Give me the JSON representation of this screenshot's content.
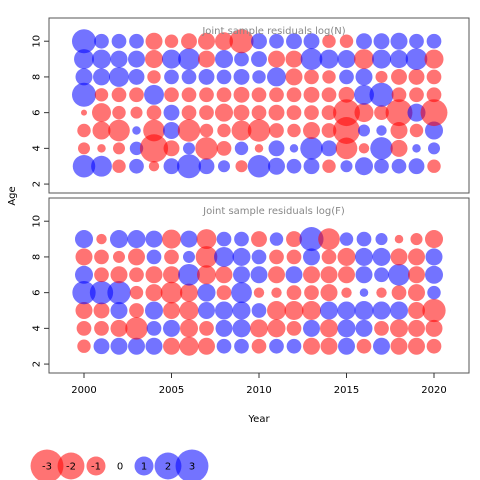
{
  "colors": {
    "negative": "#ff0000",
    "positive": "#0000ff",
    "bubble_opacity": 0.55,
    "frame": "#555555"
  },
  "xlabel": "Year",
  "ylabel": "Age",
  "xticks": [
    2000,
    2005,
    2010,
    2015,
    2020
  ],
  "yticks": [
    2,
    4,
    6,
    8,
    10
  ],
  "legend": {
    "values": [
      -3,
      -2,
      -1,
      0,
      1,
      2,
      3
    ],
    "labels": [
      "-3",
      "-2",
      "-1",
      "0",
      "1",
      "2",
      "3"
    ]
  },
  "chart_data": [
    {
      "type": "scatter",
      "subtype": "bubble-residuals",
      "title": "Joint sample residuals log(N)",
      "xlabel": "Year",
      "ylabel": "Age",
      "xlim": [
        1998,
        2022
      ],
      "ylim": [
        1.5,
        11.3
      ],
      "years": [
        2000,
        2001,
        2002,
        2003,
        2004,
        2005,
        2006,
        2007,
        2008,
        2009,
        2010,
        2011,
        2012,
        2013,
        2014,
        2015,
        2016,
        2017,
        2018,
        2019,
        2020
      ],
      "ages": [
        3,
        4,
        5,
        6,
        7,
        8,
        9,
        10
      ],
      "residuals": [
        [
          1.4,
          1.2,
          -0.5,
          0.6,
          -0.3,
          0.7,
          1.6,
          0.7,
          0.4,
          -0.4,
          1.4,
          0.8,
          0.6,
          0.7,
          -0.5,
          0.4,
          0.9,
          0.6,
          0.6,
          0.7,
          -0.5
        ],
        [
          -0.4,
          -0.2,
          -0.4,
          0.5,
          -2.2,
          -0.7,
          0.4,
          -1.4,
          -0.6,
          0.5,
          -0.2,
          0.7,
          0.2,
          1.4,
          0.7,
          -1.3,
          -0.3,
          1.4,
          -0.8,
          0.2,
          0.4
        ],
        [
          -0.5,
          -0.9,
          -1.3,
          0.2,
          -1.3,
          0.8,
          -1.4,
          -0.5,
          -0.5,
          -1.1,
          -1.4,
          -0.6,
          -0.5,
          -0.8,
          -0.6,
          -2.0,
          0.4,
          0.3,
          -0.8,
          -0.5,
          0.9
        ],
        [
          -0.1,
          -1.0,
          -0.5,
          -0.4,
          -0.6,
          0.7,
          -0.6,
          -0.6,
          -0.9,
          -0.7,
          -0.6,
          -0.7,
          -0.6,
          -0.6,
          -0.6,
          -2.0,
          -1.0,
          -0.6,
          -2.0,
          0.9,
          -2.0
        ],
        [
          1.6,
          -0.5,
          -0.6,
          -0.6,
          1.1,
          -0.6,
          -0.6,
          -0.6,
          -0.6,
          -0.7,
          -0.6,
          -0.6,
          -0.6,
          -0.7,
          -0.6,
          -0.7,
          1.1,
          1.6,
          -0.6,
          -0.6,
          -0.6
        ],
        [
          0.8,
          0.8,
          1.1,
          0.7,
          -0.5,
          0.6,
          0.6,
          0.7,
          0.6,
          0.7,
          0.5,
          1.0,
          -0.8,
          -0.6,
          -0.5,
          0.6,
          0.8,
          -0.4,
          -0.7,
          -0.7,
          -0.6
        ],
        [
          1.1,
          1.0,
          0.8,
          0.8,
          -0.9,
          1.0,
          1.3,
          -0.8,
          0.9,
          0.6,
          0.7,
          -0.8,
          -0.8,
          1.3,
          1.0,
          0.9,
          -1.1,
          1.0,
          0.9,
          1.3,
          -1.0
        ],
        [
          1.6,
          0.6,
          0.6,
          0.6,
          -0.8,
          -0.5,
          -0.7,
          -0.8,
          -0.9,
          -1.6,
          0.7,
          0.6,
          0.7,
          0.7,
          -0.5,
          -0.5,
          0.7,
          0.7,
          0.8,
          0.6,
          0.6
        ]
      ]
    },
    {
      "type": "scatter",
      "subtype": "bubble-residuals",
      "title": "Joint sample residuals log(F)",
      "xlabel": "Year",
      "ylabel": "Age",
      "xlim": [
        1998,
        2022
      ],
      "ylim": [
        1.5,
        11.3
      ],
      "years": [
        2000,
        2001,
        2002,
        2003,
        2004,
        2005,
        2006,
        2007,
        2008,
        2009,
        2010,
        2011,
        2012,
        2013,
        2014,
        2015,
        2016,
        2017,
        2018,
        2019,
        2020
      ],
      "ages": [
        3,
        4,
        5,
        6,
        7,
        8,
        9
      ],
      "residuals": [
        [
          -0.5,
          0.7,
          0.8,
          0.8,
          0.8,
          -0.8,
          -1.0,
          -0.8,
          0.6,
          0.6,
          -0.6,
          0.6,
          0.6,
          -0.8,
          -0.8,
          0.8,
          -0.6,
          0.8,
          -0.8,
          -0.8,
          -0.6
        ],
        [
          -0.6,
          -0.6,
          -0.8,
          -1.4,
          0.6,
          0.8,
          -0.9,
          -0.6,
          0.8,
          0.9,
          -0.9,
          -0.9,
          -0.6,
          0.8,
          -0.9,
          0.9,
          0.8,
          -0.6,
          -0.9,
          -0.8,
          -0.8
        ],
        [
          -0.8,
          -0.7,
          0.8,
          -0.6,
          0.9,
          -0.8,
          -1.0,
          0.8,
          0.9,
          0.9,
          0.6,
          -1.0,
          -1.0,
          -1.0,
          0.9,
          0.9,
          1.0,
          0.9,
          0.9,
          -0.8,
          -1.5
        ],
        [
          1.5,
          1.5,
          1.5,
          -0.5,
          -0.8,
          -1.3,
          -0.9,
          0.9,
          -0.6,
          1.2,
          -0.3,
          -0.3,
          -0.6,
          -0.6,
          -0.8,
          -0.3,
          0.2,
          -0.3,
          -0.6,
          -0.8,
          0.5
        ],
        [
          0.9,
          -0.6,
          -0.8,
          -0.6,
          -0.8,
          -0.8,
          1.3,
          -1.0,
          -0.8,
          0.8,
          0.8,
          -0.8,
          0.8,
          -0.8,
          -0.8,
          -0.8,
          0.8,
          0.6,
          1.3,
          -0.8,
          0.9
        ],
        [
          -0.8,
          -0.6,
          -0.4,
          -0.8,
          0.6,
          -0.6,
          0.4,
          -1.3,
          1.1,
          0.9,
          0.6,
          -0.6,
          -0.6,
          0.8,
          -0.6,
          -0.9,
          0.9,
          0.9,
          -0.8,
          -0.8,
          0.8
        ],
        [
          0.9,
          -0.3,
          0.9,
          0.9,
          0.8,
          -1.0,
          0.8,
          -1.1,
          0.6,
          0.6,
          -0.7,
          0.5,
          -0.7,
          1.6,
          -1.3,
          0.5,
          0.6,
          0.4,
          -0.2,
          -0.4,
          -0.9
        ]
      ]
    }
  ]
}
